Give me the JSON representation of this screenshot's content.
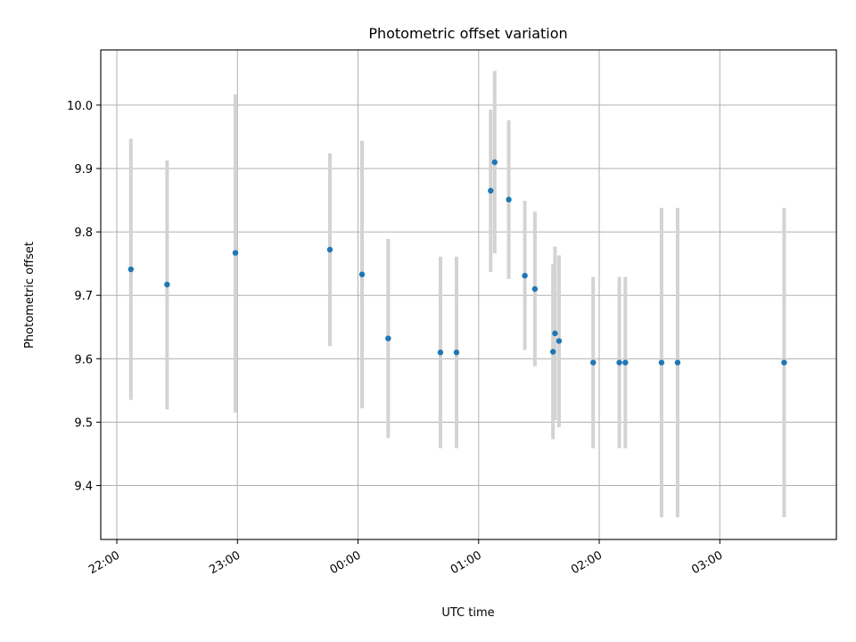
{
  "chart_data": {
    "type": "scatter",
    "title": "Photometric offset variation",
    "xlabel": "UTC time",
    "ylabel": "Photometric offset",
    "xlim": [
      "21:52",
      "03:58"
    ],
    "ylim": [
      9.315,
      10.087
    ],
    "x_day_boundary": "00:00",
    "xticks": [
      "22:00",
      "23:00",
      "00:00",
      "01:00",
      "02:00",
      "03:00"
    ],
    "yticks": [
      "9.4",
      "9.5",
      "9.6",
      "9.7",
      "9.8",
      "9.9",
      "10.0"
    ],
    "grid": true,
    "marker_color": "#1f77b4",
    "errorbar_color": "#d3d3d3",
    "points": [
      {
        "x": "22:07",
        "y": 9.741,
        "lo": 9.535,
        "hi": 9.947
      },
      {
        "x": "22:25",
        "y": 9.717,
        "lo": 9.52,
        "hi": 9.913
      },
      {
        "x": "22:59",
        "y": 9.767,
        "lo": 9.515,
        "hi": 10.017
      },
      {
        "x": "23:46",
        "y": 9.772,
        "lo": 9.62,
        "hi": 9.924
      },
      {
        "x": "00:02",
        "y": 9.733,
        "lo": 9.522,
        "hi": 9.944
      },
      {
        "x": "00:15",
        "y": 9.632,
        "lo": 9.475,
        "hi": 9.789
      },
      {
        "x": "00:41",
        "y": 9.61,
        "lo": 9.459,
        "hi": 9.761
      },
      {
        "x": "00:49",
        "y": 9.61,
        "lo": 9.459,
        "hi": 9.761
      },
      {
        "x": "01:06",
        "y": 9.865,
        "lo": 9.737,
        "hi": 9.993
      },
      {
        "x": "01:08",
        "y": 9.91,
        "lo": 9.766,
        "hi": 10.054
      },
      {
        "x": "01:15",
        "y": 9.851,
        "lo": 9.726,
        "hi": 9.976
      },
      {
        "x": "01:23",
        "y": 9.731,
        "lo": 9.614,
        "hi": 9.849
      },
      {
        "x": "01:28",
        "y": 9.71,
        "lo": 9.588,
        "hi": 9.832
      },
      {
        "x": "01:37",
        "y": 9.611,
        "lo": 9.473,
        "hi": 9.749
      },
      {
        "x": "01:38",
        "y": 9.64,
        "lo": 9.503,
        "hi": 9.777
      },
      {
        "x": "01:40",
        "y": 9.628,
        "lo": 9.492,
        "hi": 9.763
      },
      {
        "x": "01:57",
        "y": 9.594,
        "lo": 9.459,
        "hi": 9.729
      },
      {
        "x": "02:10",
        "y": 9.594,
        "lo": 9.459,
        "hi": 9.729
      },
      {
        "x": "02:13",
        "y": 9.594,
        "lo": 9.459,
        "hi": 9.729
      },
      {
        "x": "02:31",
        "y": 9.594,
        "lo": 9.35,
        "hi": 9.838
      },
      {
        "x": "02:39",
        "y": 9.594,
        "lo": 9.35,
        "hi": 9.838
      },
      {
        "x": "03:32",
        "y": 9.594,
        "lo": 9.35,
        "hi": 9.838
      }
    ]
  }
}
